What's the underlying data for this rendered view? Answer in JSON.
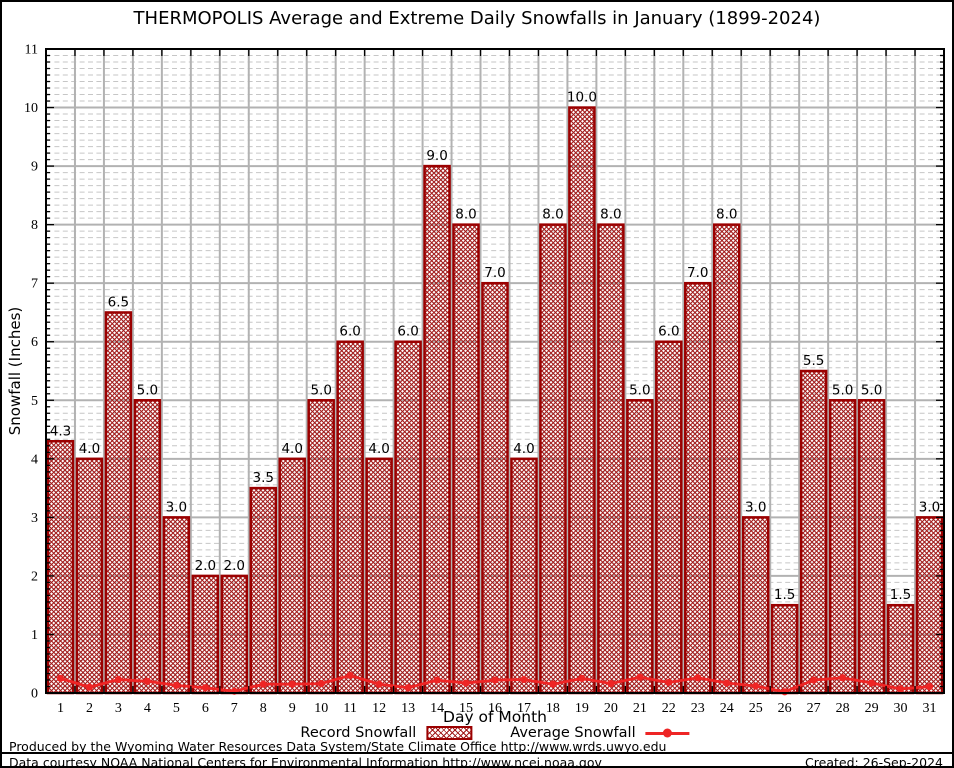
{
  "header": {
    "title": "THERMOPOLIS Average and Extreme Daily Snowfalls in January (1899-2024)"
  },
  "legend": {
    "record_label": "Record Snowfall",
    "average_label": "Average Snowfall"
  },
  "footer": {
    "line1": "Produced by the Wyoming Water Resources Data System/State Climate Office http://www.wrds.uwyo.edu",
    "line2": "Data courtesy NOAA National Centers for Environmental Information http://www.ncei.noaa.gov",
    "created": "Created: 26-Sep-2024"
  },
  "colors": {
    "bar_border": "#9b0000",
    "bar_hatch": "#a21a1a",
    "average_line": "#ee2525",
    "grid_major": "#b2b2b2",
    "grid_minor": "#c6c6c6",
    "plot_border": "#000000",
    "label_text": "#000000"
  },
  "chart_data": {
    "type": "bar",
    "title": "THERMOPOLIS Average and Extreme Daily Snowfalls in January (1899-2024)",
    "xlabel": "Day of Month",
    "ylabel": "Snowfall (Inches)",
    "categories": [
      1,
      2,
      3,
      4,
      5,
      6,
      7,
      8,
      9,
      10,
      11,
      12,
      13,
      14,
      15,
      16,
      17,
      18,
      19,
      20,
      21,
      22,
      23,
      24,
      25,
      26,
      27,
      28,
      29,
      30,
      31
    ],
    "series": [
      {
        "name": "Record Snowfall",
        "type": "bar",
        "values": [
          4.3,
          4.0,
          6.5,
          5.0,
          3.0,
          2.0,
          2.0,
          3.5,
          4.0,
          5.0,
          6.0,
          4.0,
          6.0,
          9.0,
          8.0,
          7.0,
          4.0,
          8.0,
          10.0,
          8.0,
          5.0,
          6.0,
          7.0,
          8.0,
          3.0,
          1.5,
          5.5,
          5.0,
          5.0,
          1.5,
          3.0
        ],
        "data_labels": [
          "4.3",
          "4.0",
          "6.5",
          "5.0",
          "3.0",
          "2.0",
          "2.0",
          "3.5",
          "4.0",
          "5.0",
          "6.0",
          "4.0",
          "6.0",
          "9.0",
          "8.0",
          "7.0",
          "4.0",
          "8.0",
          "10.0",
          "8.0",
          "5.0",
          "6.0",
          "7.0",
          "8.0",
          "3.0",
          "1.5",
          "5.5",
          "5.0",
          "5.0",
          "1.5",
          "3.0"
        ]
      },
      {
        "name": "Average Snowfall",
        "type": "line",
        "values": [
          0.25,
          0.1,
          0.23,
          0.2,
          0.13,
          0.09,
          0.03,
          0.15,
          0.15,
          0.16,
          0.3,
          0.15,
          0.09,
          0.22,
          0.17,
          0.22,
          0.23,
          0.15,
          0.25,
          0.16,
          0.27,
          0.18,
          0.26,
          0.17,
          0.12,
          0.02,
          0.22,
          0.26,
          0.17,
          0.07,
          0.11
        ]
      }
    ],
    "ylim": [
      0,
      11
    ],
    "yticks": [
      0,
      1,
      2,
      3,
      4,
      5,
      6,
      7,
      8,
      9,
      10,
      11
    ],
    "grid": true,
    "legend_position": "bottom"
  }
}
